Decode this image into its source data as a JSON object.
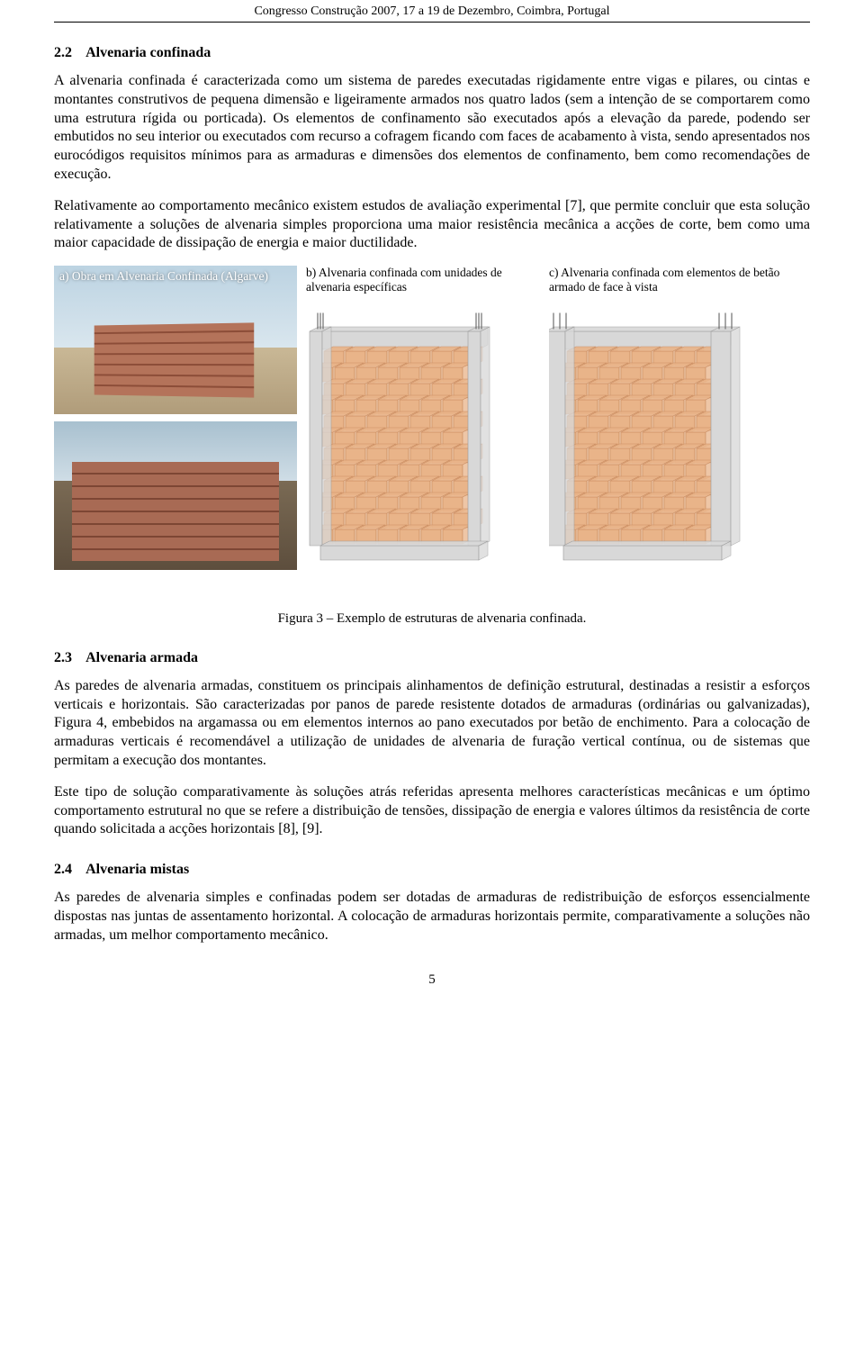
{
  "header": {
    "running": "Congresso Construção 2007, 17 a 19 de Dezembro, Coimbra, Portugal"
  },
  "sec22": {
    "heading_num": "2.2",
    "heading_txt": "Alvenaria confinada",
    "p1": "A alvenaria confinada é caracterizada como um sistema de paredes executadas rigidamente entre vigas e pilares, ou cintas e montantes construtivos de pequena dimensão e ligeiramente armados nos quatro lados (sem a intenção de se comportarem como uma estrutura rígida ou porticada). Os elementos de confinamento são executados após a elevação da parede, podendo ser embutidos no seu interior ou executados com recurso a cofragem ficando com faces de acabamento à vista, sendo apresentados nos eurocódigos requisitos mínimos para as armaduras e dimensões dos elementos de confinamento, bem como recomendações de execução.",
    "p2": "Relativamente ao comportamento mecânico existem estudos de avaliação experimental [7], que permite concluir que esta solução relativamente a soluções de alvenaria simples proporciona uma maior resistência mecânica a acções de corte, bem como uma maior capacidade de dissipação de energia e maior ductilidade."
  },
  "fig3": {
    "cap_a": "a) Obra em Alvenaria Confinada (Algarve)",
    "cap_b": "b) Alvenaria confinada com unidades de alvenaria específicas",
    "cap_c": "c) Alvenaria confinada com elementos de betão armado de face à vista",
    "caption": "Figura 3 – Exemplo de estruturas de alvenaria confinada.",
    "brick_fill": "#e9b489",
    "brick_stroke": "#c98a5f",
    "col_fill": "#d8d8d8",
    "col_stroke": "#9a9a9a",
    "rebar": "#6d6d6d",
    "bg": "#ffffff"
  },
  "sec23": {
    "heading_num": "2.3",
    "heading_txt": "Alvenaria armada",
    "p1": "As paredes de alvenaria armadas, constituem os principais alinhamentos de definição estrutural, destinadas a resistir a esforços verticais e horizontais. São caracterizadas por panos de parede resistente dotados de armaduras (ordinárias ou galvanizadas), Figura 4, embebidos na argamassa ou em elementos internos ao pano executados por betão de enchimento. Para a colocação de armaduras verticais é recomendável a utilização de unidades de alvenaria de furação vertical contínua, ou de sistemas que permitam a execução dos montantes.",
    "p2": "Este tipo de solução comparativamente às soluções atrás referidas apresenta melhores características mecânicas e um óptimo comportamento estrutural no que se refere a distribuição de tensões, dissipação de energia e valores últimos da resistência de corte quando solicitada a acções horizontais [8], [9]."
  },
  "sec24": {
    "heading_num": "2.4",
    "heading_txt": "Alvenaria mistas",
    "p1": "As paredes de alvenaria simples e confinadas podem ser dotadas de armaduras de redistribuição de esforços essencialmente dispostas nas juntas de assentamento horizontal. A colocação de armaduras horizontais permite, comparativamente a soluções não armadas, um melhor comportamento mecânico."
  },
  "page_number": "5"
}
